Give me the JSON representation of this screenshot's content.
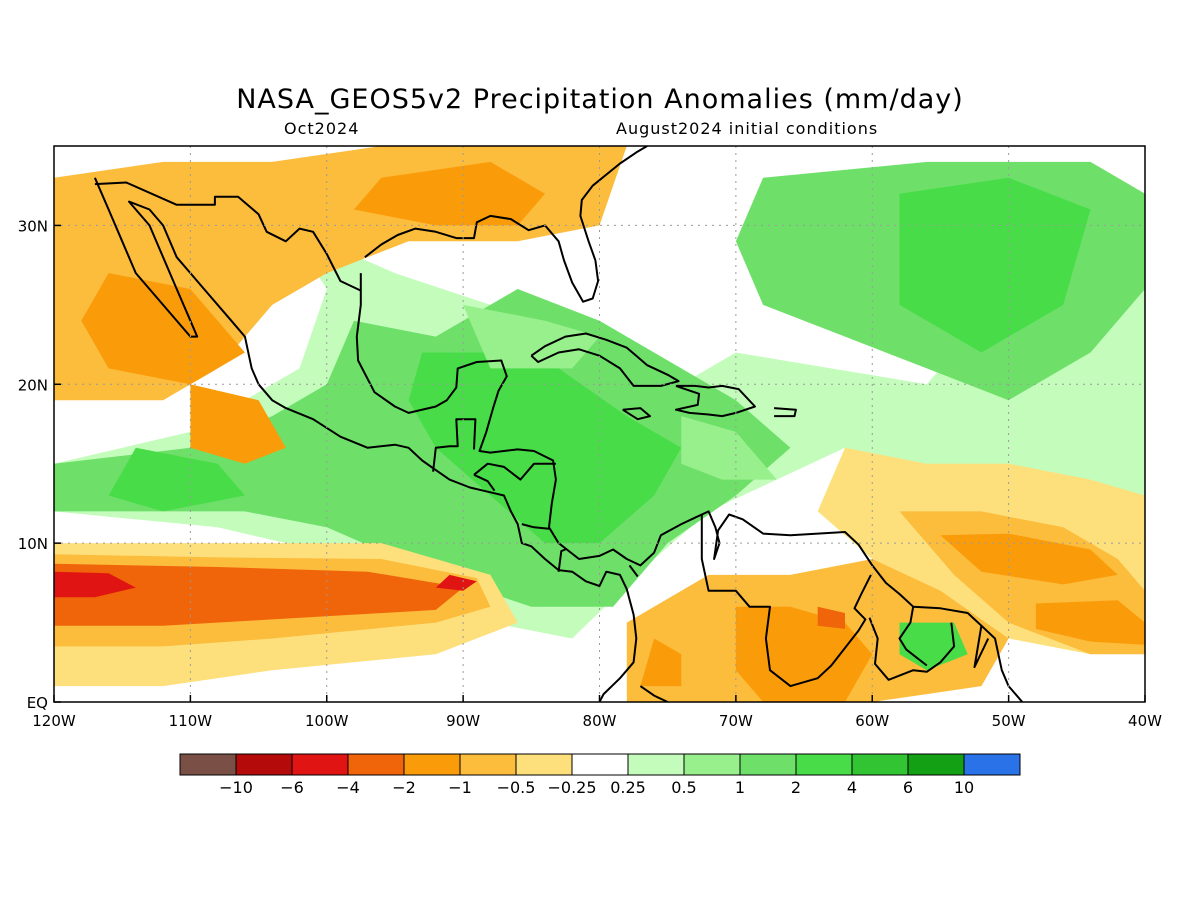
{
  "title": "NASA_GEOS5v2 Precipitation Anomalies (mm/day)",
  "subtitle_left": "Oct2024",
  "subtitle_right": "August2024 initial conditions",
  "map": {
    "lon_range": [
      -120,
      -40
    ],
    "lat_range": [
      0,
      35
    ],
    "x_ticks": [
      {
        "value": -120,
        "label": "120W"
      },
      {
        "value": -110,
        "label": "110W"
      },
      {
        "value": -100,
        "label": "100W"
      },
      {
        "value": -90,
        "label": "90W"
      },
      {
        "value": -80,
        "label": "80W"
      },
      {
        "value": -70,
        "label": "70W"
      },
      {
        "value": -60,
        "label": "60W"
      },
      {
        "value": -50,
        "label": "50W"
      },
      {
        "value": -40,
        "label": "40W"
      }
    ],
    "y_ticks": [
      {
        "value": 0,
        "label": "EQ"
      },
      {
        "value": 10,
        "label": "10N"
      },
      {
        "value": 20,
        "label": "20N"
      },
      {
        "value": 30,
        "label": "30N"
      }
    ]
  },
  "colorbar": {
    "colors": [
      "#7a5046",
      "#b40a0a",
      "#e11414",
      "#f0640a",
      "#fa9c0a",
      "#fcbc3c",
      "#fde07c",
      "#ffffff",
      "#c4fcbc",
      "#98f08c",
      "#6ee06a",
      "#48dc48",
      "#32c432",
      "#14a014",
      "#2a72e8"
    ],
    "labels": [
      "-10",
      "-6",
      "-4",
      "-2",
      "-1",
      "-0.5",
      "-0.25",
      "0.25",
      "0.5",
      "1",
      "2",
      "4",
      "6",
      "10"
    ]
  },
  "anomaly_regions": [
    {
      "category": 8,
      "points": [
        [
          -103,
          30
        ],
        [
          -95,
          27
        ],
        [
          -88,
          25
        ],
        [
          -80,
          24
        ],
        [
          -74,
          20
        ],
        [
          -70,
          22
        ],
        [
          -56,
          20
        ],
        [
          -52,
          24
        ],
        [
          -48,
          28
        ],
        [
          -40,
          30
        ],
        [
          -40,
          12
        ],
        [
          -52,
          12
        ],
        [
          -62,
          16
        ],
        [
          -72,
          12
        ],
        [
          -76,
          9
        ],
        [
          -82,
          4
        ],
        [
          -88,
          5
        ],
        [
          -98,
          9
        ],
        [
          -108,
          11
        ],
        [
          -120,
          12
        ],
        [
          -120,
          15
        ],
        [
          -110,
          17
        ],
        [
          -102,
          21
        ],
        [
          -100,
          26
        ]
      ]
    },
    {
      "category": 10,
      "points": [
        [
          -98,
          24
        ],
        [
          -92,
          23
        ],
        [
          -86,
          26
        ],
        [
          -80,
          24
        ],
        [
          -74,
          21
        ],
        [
          -70,
          19
        ],
        [
          -66,
          16
        ],
        [
          -70,
          13
        ],
        [
          -75,
          10
        ],
        [
          -79,
          6
        ],
        [
          -85,
          6
        ],
        [
          -92,
          8
        ],
        [
          -100,
          11
        ],
        [
          -106,
          12
        ],
        [
          -114,
          12
        ],
        [
          -120,
          12
        ],
        [
          -120,
          15
        ],
        [
          -110,
          16
        ],
        [
          -104,
          18
        ],
        [
          -100,
          20
        ]
      ]
    },
    {
      "category": 10,
      "points": [
        [
          -68,
          33
        ],
        [
          -56,
          34
        ],
        [
          -44,
          34
        ],
        [
          -40,
          32
        ],
        [
          -40,
          26
        ],
        [
          -44,
          22
        ],
        [
          -50,
          19
        ],
        [
          -56,
          21
        ],
        [
          -62,
          23
        ],
        [
          -68,
          25
        ],
        [
          -70,
          29
        ]
      ]
    },
    {
      "category": 11,
      "points": [
        [
          -93,
          22
        ],
        [
          -88,
          22
        ],
        [
          -83,
          21
        ],
        [
          -78,
          18
        ],
        [
          -74,
          16
        ],
        [
          -76,
          13
        ],
        [
          -80,
          10
        ],
        [
          -84,
          10
        ],
        [
          -88,
          13
        ],
        [
          -92,
          16
        ],
        [
          -94,
          19
        ]
      ]
    },
    {
      "category": 11,
      "points": [
        [
          -58,
          32
        ],
        [
          -50,
          33
        ],
        [
          -44,
          31
        ],
        [
          -46,
          25
        ],
        [
          -52,
          22
        ],
        [
          -58,
          25
        ]
      ]
    },
    {
      "category": 11,
      "points": [
        [
          -114,
          16
        ],
        [
          -108,
          15
        ],
        [
          -106,
          13
        ],
        [
          -112,
          12
        ],
        [
          -116,
          13
        ]
      ]
    },
    {
      "category": 9,
      "points": [
        [
          -90,
          25
        ],
        [
          -84,
          24
        ],
        [
          -80,
          23
        ],
        [
          -82,
          21
        ],
        [
          -88,
          21
        ]
      ]
    },
    {
      "category": 9,
      "points": [
        [
          -74,
          18
        ],
        [
          -70,
          17
        ],
        [
          -67,
          14
        ],
        [
          -71,
          14
        ],
        [
          -74,
          15
        ]
      ]
    },
    {
      "category": 5,
      "points": [
        [
          -120,
          33
        ],
        [
          -112,
          34
        ],
        [
          -104,
          34
        ],
        [
          -96,
          35
        ],
        [
          -82,
          35
        ],
        [
          -78,
          35
        ],
        [
          -80,
          30
        ],
        [
          -86,
          29
        ],
        [
          -94,
          29
        ],
        [
          -100,
          27
        ],
        [
          -104,
          25
        ],
        [
          -108,
          21
        ],
        [
          -112,
          19
        ],
        [
          -120,
          19
        ]
      ]
    },
    {
      "category": 4,
      "points": [
        [
          -116,
          27
        ],
        [
          -110,
          26
        ],
        [
          -106,
          22
        ],
        [
          -110,
          20
        ],
        [
          -116,
          21
        ],
        [
          -118,
          24
        ]
      ]
    },
    {
      "category": 4,
      "points": [
        [
          -96,
          33
        ],
        [
          -88,
          34
        ],
        [
          -84,
          32
        ],
        [
          -86,
          30
        ],
        [
          -92,
          30
        ],
        [
          -98,
          31
        ]
      ]
    },
    {
      "category": 4,
      "points": [
        [
          -110,
          20
        ],
        [
          -105,
          19
        ],
        [
          -103,
          16
        ],
        [
          -106,
          15
        ],
        [
          -110,
          16
        ]
      ]
    },
    {
      "category": 6,
      "points": [
        [
          -120,
          10
        ],
        [
          -108,
          10
        ],
        [
          -96,
          10
        ],
        [
          -88,
          8
        ],
        [
          -86,
          5
        ],
        [
          -92,
          3
        ],
        [
          -104,
          2
        ],
        [
          -112,
          1
        ],
        [
          -120,
          1
        ]
      ]
    },
    {
      "category": 5,
      "points": [
        [
          -120,
          9.3
        ],
        [
          -108,
          9.1
        ],
        [
          -96,
          9
        ],
        [
          -89,
          7.8
        ],
        [
          -88,
          6
        ],
        [
          -92,
          5
        ],
        [
          -104,
          4
        ],
        [
          -112,
          3.5
        ],
        [
          -120,
          3.5
        ]
      ]
    },
    {
      "category": 3,
      "points": [
        [
          -120,
          8.7
        ],
        [
          -108,
          8.5
        ],
        [
          -97,
          8.2
        ],
        [
          -90,
          7.2
        ],
        [
          -92,
          5.8
        ],
        [
          -104,
          5.2
        ],
        [
          -112,
          4.8
        ],
        [
          -120,
          4.8
        ]
      ]
    },
    {
      "category": 2,
      "points": [
        [
          -120,
          8.2
        ],
        [
          -116,
          8.1
        ],
        [
          -114,
          7.2
        ],
        [
          -117,
          6.6
        ],
        [
          -120,
          6.6
        ]
      ]
    },
    {
      "category": 2,
      "points": [
        [
          -91,
          8
        ],
        [
          -89,
          7.6
        ],
        [
          -90,
          7
        ],
        [
          -92,
          7.2
        ]
      ]
    },
    {
      "category": 5,
      "points": [
        [
          -78,
          5
        ],
        [
          -72,
          8
        ],
        [
          -66,
          8
        ],
        [
          -60,
          9
        ],
        [
          -56,
          8
        ],
        [
          -52,
          7
        ],
        [
          -50,
          4
        ],
        [
          -52,
          1
        ],
        [
          -60,
          0
        ],
        [
          -70,
          0
        ],
        [
          -78,
          0
        ]
      ]
    },
    {
      "category": 4,
      "points": [
        [
          -70,
          6
        ],
        [
          -66,
          6
        ],
        [
          -62,
          5
        ],
        [
          -60,
          3
        ],
        [
          -62,
          0
        ],
        [
          -68,
          0
        ],
        [
          -70,
          2
        ]
      ]
    },
    {
      "category": 4,
      "points": [
        [
          -76,
          4
        ],
        [
          -74,
          3
        ],
        [
          -74,
          1
        ],
        [
          -77,
          1
        ]
      ]
    },
    {
      "category": 3,
      "points": [
        [
          -64,
          6
        ],
        [
          -62,
          5.6
        ],
        [
          -62,
          4.6
        ],
        [
          -64,
          4.8
        ]
      ]
    },
    {
      "category": 11,
      "points": [
        [
          -58,
          5
        ],
        [
          -54,
          5
        ],
        [
          -53,
          3
        ],
        [
          -56,
          2
        ],
        [
          -58,
          3
        ]
      ]
    },
    {
      "category": 6,
      "points": [
        [
          -62,
          16
        ],
        [
          -56,
          15
        ],
        [
          -50,
          15
        ],
        [
          -44,
          14
        ],
        [
          -40,
          13
        ],
        [
          -40,
          4
        ],
        [
          -44,
          3
        ],
        [
          -50,
          4
        ],
        [
          -55,
          7
        ],
        [
          -60,
          9
        ],
        [
          -64,
          12
        ]
      ]
    },
    {
      "category": 5,
      "points": [
        [
          -58,
          12
        ],
        [
          -52,
          12
        ],
        [
          -46,
          11
        ],
        [
          -42,
          9
        ],
        [
          -40,
          7
        ],
        [
          -40,
          3
        ],
        [
          -44,
          3
        ],
        [
          -50,
          5
        ],
        [
          -54,
          8
        ]
      ]
    },
    {
      "category": 4,
      "points": [
        [
          -55,
          10.5
        ],
        [
          -50,
          10.6
        ],
        [
          -44,
          9.6
        ],
        [
          -42,
          8
        ],
        [
          -46,
          7.4
        ],
        [
          -52,
          8.2
        ]
      ]
    },
    {
      "category": 4,
      "points": [
        [
          -48,
          6.2
        ],
        [
          -42,
          6.4
        ],
        [
          -40,
          5
        ],
        [
          -40,
          3.6
        ],
        [
          -44,
          3.8
        ],
        [
          -48,
          4.6
        ]
      ]
    }
  ]
}
